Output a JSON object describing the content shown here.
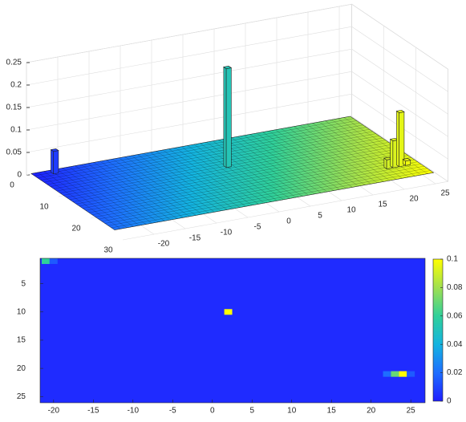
{
  "chart_data": [
    {
      "type": "bar3",
      "xlim": [
        -25,
        27
      ],
      "ylim": [
        0,
        30
      ],
      "zlim": [
        0,
        0.25
      ],
      "xticks": [
        -20,
        -15,
        -10,
        -5,
        0,
        5,
        10,
        15,
        20,
        25
      ],
      "yticks": [
        0,
        10,
        20,
        30
      ],
      "zticks": [
        0,
        0.05,
        0.1,
        0.15,
        0.2,
        0.25
      ],
      "grid": true,
      "bars": {
        "x": [
          -21,
          2,
          22,
          23,
          24,
          25
        ],
        "y": [
          1,
          10,
          21,
          21,
          21,
          21
        ],
        "values": [
          0.05,
          0.22,
          0.02,
          0.06,
          0.12,
          0.01
        ]
      },
      "colormap": [
        "#1f1fff",
        "#1e6eff",
        "#14b4e0",
        "#30d09a",
        "#a0e050",
        "#ffff00"
      ]
    },
    {
      "type": "heatmap",
      "xlim": [
        -21.7,
        26.8
      ],
      "ylim": [
        0.5,
        26.1
      ],
      "xticks": [
        -20,
        -15,
        -10,
        -5,
        0,
        5,
        10,
        15,
        20,
        25
      ],
      "yticks": [
        5,
        10,
        15,
        20,
        25
      ],
      "clim": [
        0,
        0.1
      ],
      "colorbar_ticks": [
        0,
        0.02,
        0.04,
        0.06,
        0.08,
        0.1
      ],
      "cells": {
        "x": [
          -21,
          -20,
          2,
          22,
          23,
          24,
          25
        ],
        "y": [
          1,
          1,
          10,
          21,
          21,
          21,
          21
        ],
        "values": [
          0.06,
          0.015,
          0.22,
          0.02,
          0.07,
          0.1,
          0.015
        ]
      },
      "colormap": [
        "#1f1fff",
        "#1e6eff",
        "#14b4e0",
        "#30d09a",
        "#a0e050",
        "#ffff00"
      ]
    }
  ]
}
